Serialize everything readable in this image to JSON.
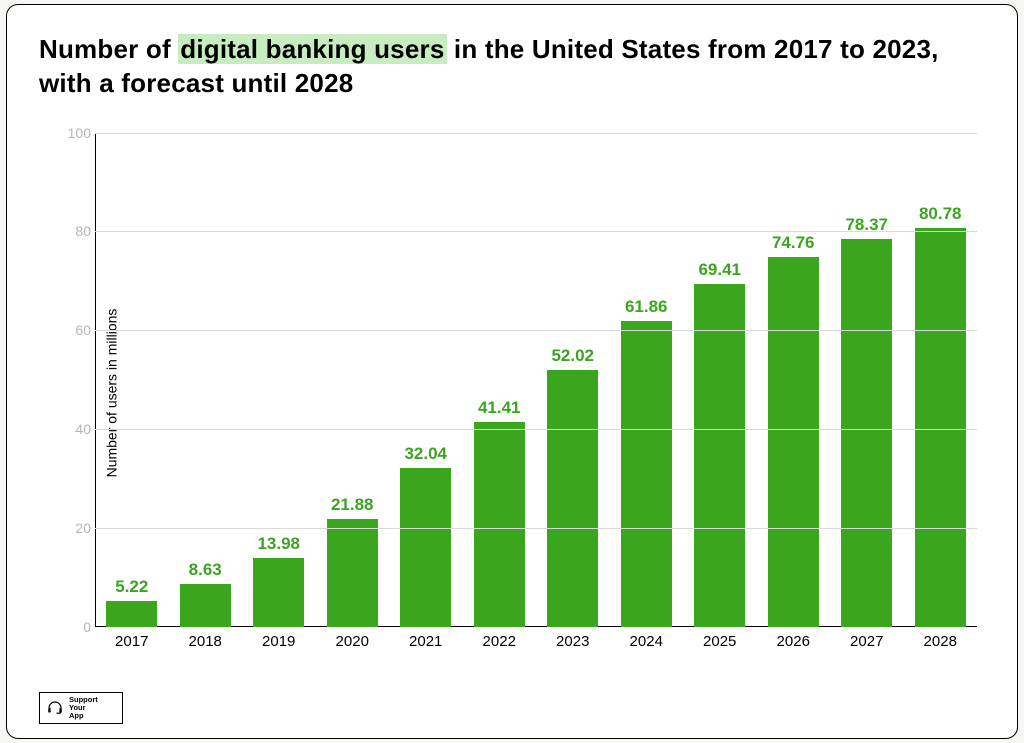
{
  "title": {
    "pre": "Number of ",
    "highlight": "digital banking users",
    "post": " in the United States from 2017 to 2023, with a forecast until 2028",
    "fontsize": 26,
    "highlight_bg": "#c6ecc0"
  },
  "chart": {
    "type": "bar",
    "ylabel": "Number of users in millions",
    "ylim": [
      0,
      100
    ],
    "ytick_step": 20,
    "yticks": [
      0,
      20,
      40,
      60,
      80,
      100
    ],
    "categories": [
      "2017",
      "2018",
      "2019",
      "2020",
      "2021",
      "2022",
      "2023",
      "2024",
      "2025",
      "2026",
      "2027",
      "2028"
    ],
    "values": [
      5.22,
      8.63,
      13.98,
      21.88,
      32.04,
      41.41,
      52.02,
      61.86,
      69.41,
      74.76,
      78.37,
      80.78
    ],
    "bar_color": "#39a61d",
    "value_label_color": "#3ba51f",
    "grid_color": "#d9d9d9",
    "axis_color": "#000000",
    "ytick_color": "#b5b5b5",
    "background_color": "#ffffff",
    "bar_width": 0.7,
    "label_fontsize": 15,
    "value_fontsize": 17,
    "ylabel_fontsize": 14
  },
  "logo": {
    "text": "Support\nYour\nApp"
  }
}
